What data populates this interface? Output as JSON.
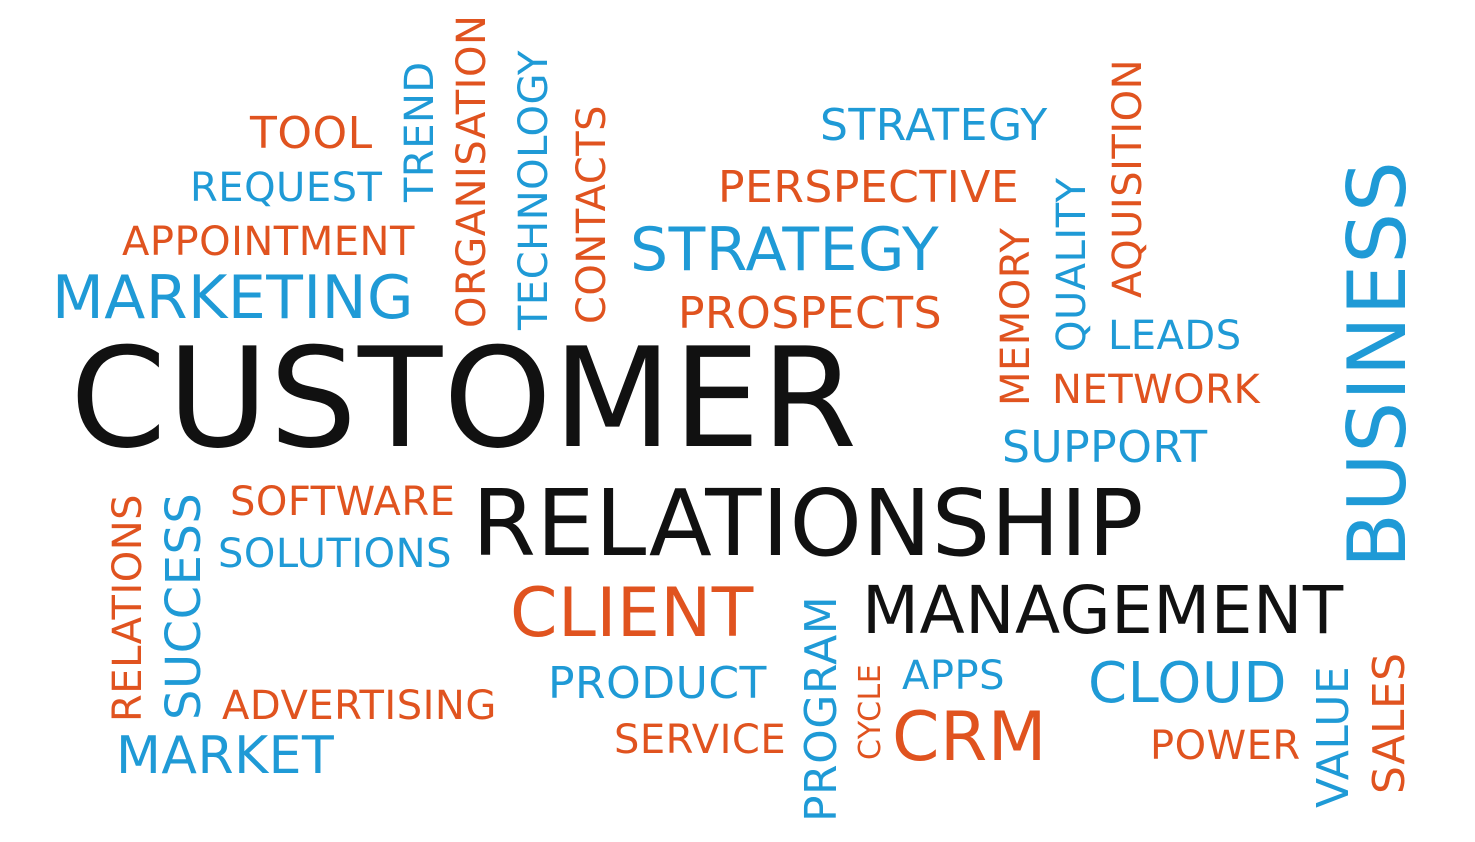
{
  "words": {
    "customer": "CUSTOMER",
    "relationship": "RELATIONSHIP",
    "management": "MANAGEMENT",
    "business": "BUSINESS",
    "client": "CLIENT",
    "crm": "CRM",
    "marketing": "MARKETING",
    "strategy_large": "STRATEGY",
    "strategy_small": "STRATEGY",
    "perspective": "PERSPECTIVE",
    "prospects": "PROSPECTS",
    "tool": "TOOL",
    "request": "REQUEST",
    "appointment": "APPOINTMENT",
    "trend": "TREND",
    "organisation": "ORGANISATION",
    "technology": "TECHNOLOGY",
    "contacts": "CONTACTS",
    "memory": "MEMORY",
    "quality": "QUALITY",
    "aquisition": "AQUISITION",
    "leads": "LEADS",
    "network": "NETWORK",
    "support": "SUPPORT",
    "software": "SOFTWARE",
    "solutions": "SOLUTIONS",
    "relations": "RELATIONS",
    "success": "SUCCESS",
    "advertising": "ADVERTISING",
    "market": "MARKET",
    "product": "PRODUCT",
    "service": "SERVICE",
    "program": "PROGRAM",
    "cycle": "CYCLE",
    "apps": "APPS",
    "cloud": "CLOUD",
    "power": "POWER",
    "value": "VALUE",
    "sales": "SALES"
  },
  "colors": {
    "blue": "#1f9ad6",
    "orange": "#e0531f",
    "black": "#111111",
    "background": "#ffffff"
  }
}
